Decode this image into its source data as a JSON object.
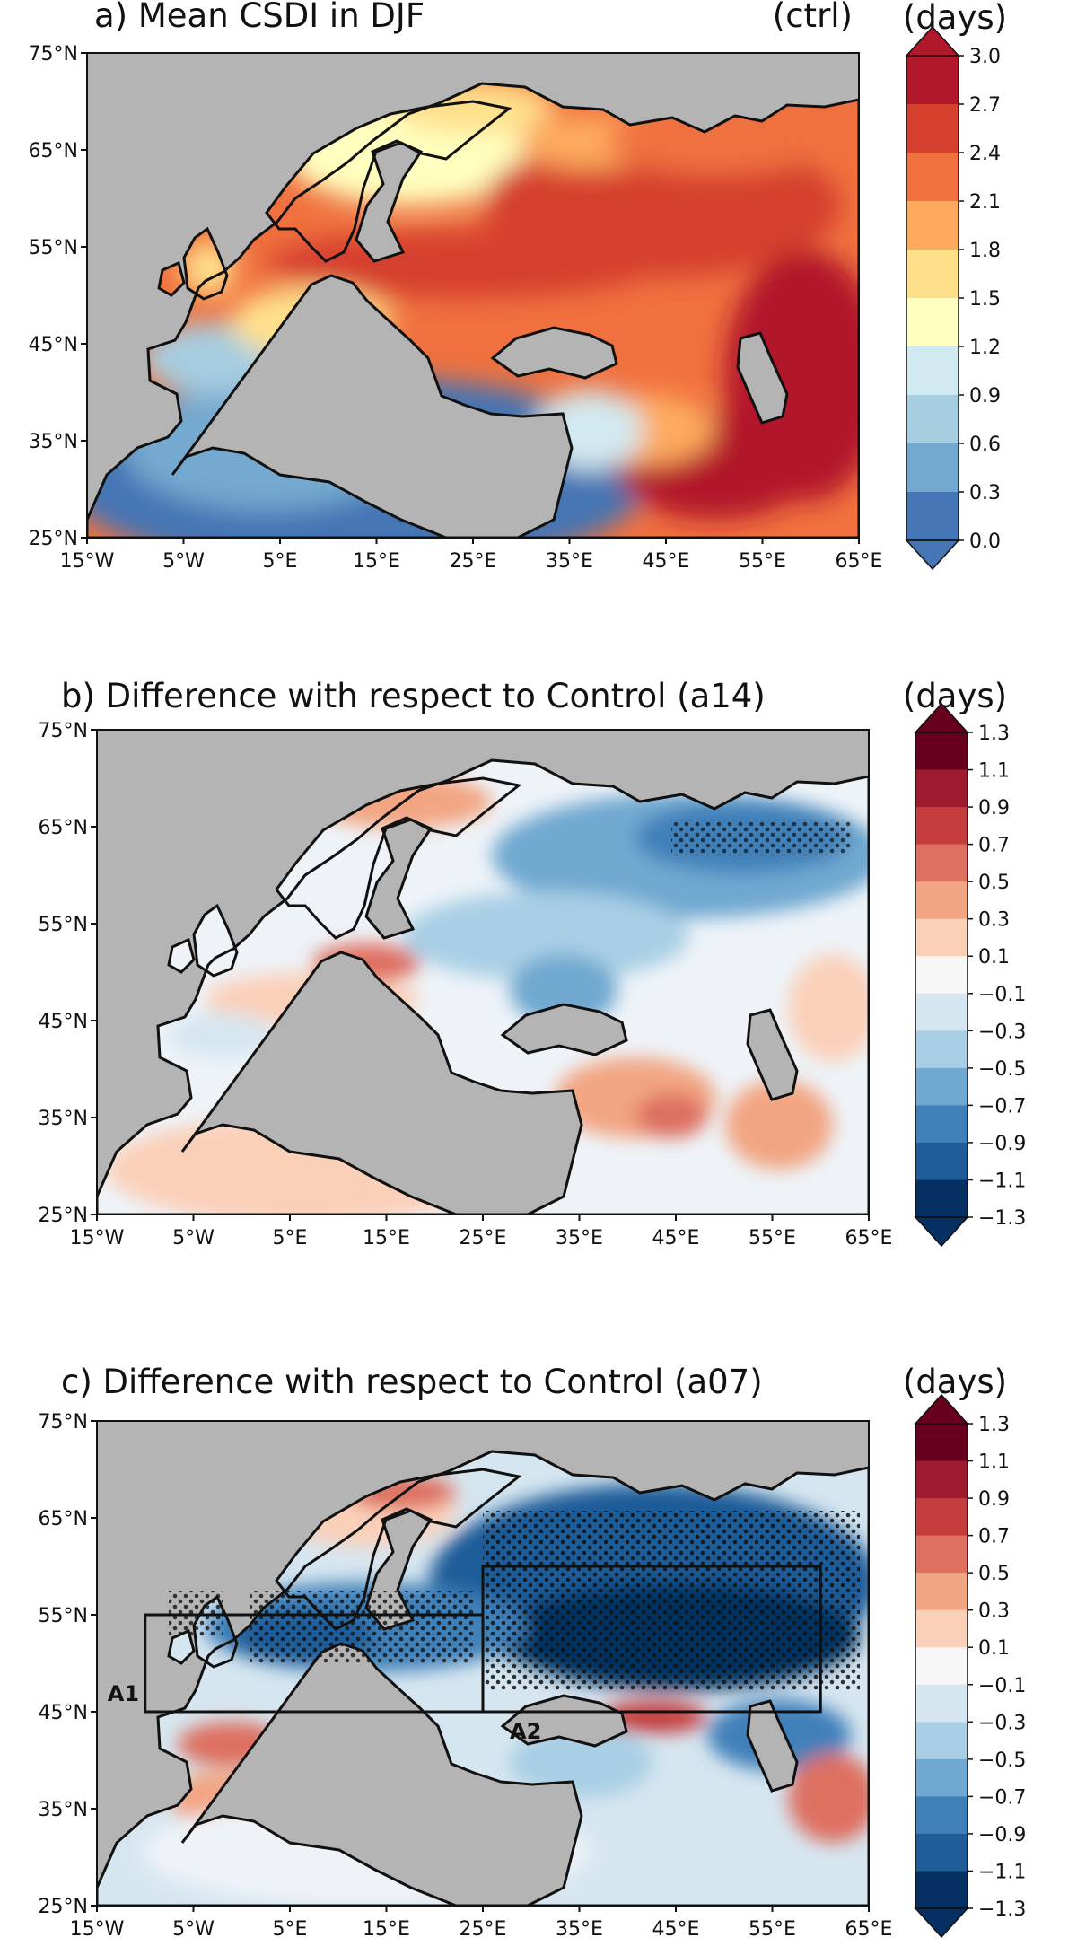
{
  "panels": [
    {
      "id": "a",
      "title": "a) Mean CSDI in DJF",
      "tag": "(ctrl)",
      "unit": "(days)",
      "colorbar_ticks": [
        "3.0",
        "2.7",
        "2.4",
        "2.1",
        "1.8",
        "1.5",
        "1.2",
        "0.9",
        "0.6",
        "0.3",
        "0.0"
      ],
      "colorbar_colors": [
        "#b2182b",
        "#d6402e",
        "#f0713f",
        "#fdaa5e",
        "#fee08b",
        "#ffffbf",
        "#d1e9f0",
        "#a6cde0",
        "#74a9cf",
        "#4575b4"
      ],
      "lat_labels": [
        "75°N",
        "65°N",
        "55°N",
        "45°N",
        "35°N",
        "25°N"
      ],
      "lon_labels": [
        "15°W",
        "5°W",
        "5°E",
        "15°E",
        "25°E",
        "35°E",
        "45°E",
        "55°E",
        "65°E"
      ]
    },
    {
      "id": "b",
      "title": "b) Difference with respect to Control (a14)",
      "unit": "(days)",
      "colorbar_ticks": [
        "1.3",
        "1.1",
        "0.9",
        "0.7",
        "0.5",
        "0.3",
        "0.1",
        "−0.1",
        "−0.3",
        "−0.5",
        "−0.7",
        "−0.9",
        "−1.1",
        "−1.3"
      ],
      "colorbar_colors": [
        "#67001f",
        "#9e1a2e",
        "#c43c3c",
        "#de7060",
        "#f2a582",
        "#fbd0b9",
        "#f7f7f7",
        "#d6e6f0",
        "#a9cfe5",
        "#6fa8d0",
        "#3f80b9",
        "#1f5c99",
        "#053061"
      ],
      "lat_labels": [
        "75°N",
        "65°N",
        "55°N",
        "45°N",
        "35°N",
        "25°N"
      ],
      "lon_labels": [
        "15°W",
        "5°W",
        "5°E",
        "15°E",
        "25°E",
        "35°E",
        "45°E",
        "55°E",
        "65°E"
      ]
    },
    {
      "id": "c",
      "title": "c) Difference with respect to Control (a07)",
      "unit": "(days)",
      "colorbar_ticks": [
        "1.3",
        "1.1",
        "0.9",
        "0.7",
        "0.5",
        "0.3",
        "0.1",
        "−0.1",
        "−0.3",
        "−0.5",
        "−0.7",
        "−0.9",
        "−1.1",
        "−1.3"
      ],
      "colorbar_colors": [
        "#67001f",
        "#9e1a2e",
        "#c43c3c",
        "#de7060",
        "#f2a582",
        "#fbd0b9",
        "#f7f7f7",
        "#d6e6f0",
        "#a9cfe5",
        "#6fa8d0",
        "#3f80b9",
        "#1f5c99",
        "#053061"
      ],
      "lat_labels": [
        "75°N",
        "65°N",
        "55°N",
        "45°N",
        "35°N",
        "25°N"
      ],
      "lon_labels": [
        "15°W",
        "5°W",
        "5°E",
        "15°E",
        "25°E",
        "35°E",
        "45°E",
        "55°E",
        "65°E"
      ],
      "boxes": [
        {
          "label": "A1",
          "lon": [
            -10,
            25
          ],
          "lat": [
            45,
            55
          ]
        },
        {
          "label": "A2",
          "lon": [
            25,
            60
          ],
          "lat": [
            45,
            60
          ]
        }
      ]
    }
  ],
  "colors": {
    "ocean_mask": "#b4b4b4",
    "coast": "#111111"
  }
}
